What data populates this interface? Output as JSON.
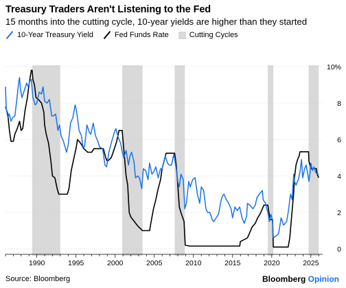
{
  "header": {
    "title": "Treasury Traders Aren't Listening to the Fed",
    "subtitle": "15 months into the cutting cycle, 10-year yields are higher than they started"
  },
  "legend": {
    "items": [
      {
        "label": "10-Year Treasury Yield",
        "color": "#1a73e8",
        "kind": "line"
      },
      {
        "label": "Fed Funds Rate",
        "color": "#000000",
        "kind": "line"
      },
      {
        "label": "Cutting Cycles",
        "color": "#d9d9d9",
        "kind": "swatch"
      }
    ]
  },
  "footer": {
    "source": "Source: Bloomberg",
    "brand_main": "Bloomberg",
    "brand_accent": "Opinion"
  },
  "chart_data": {
    "type": "line",
    "title": "Treasury Traders Aren't Listening to the Fed",
    "subtitle": "15 months into the cutting cycle, 10-year yields are higher than they started",
    "xlabel": "",
    "ylabel": "",
    "xlim": [
      1986,
      2026.5
    ],
    "ylim": [
      0,
      10
    ],
    "y_unit_label": "%",
    "x_ticks": [
      1990,
      1995,
      2000,
      2005,
      2010,
      2015,
      2020,
      2025
    ],
    "y_ticks": [
      0,
      2,
      4,
      6,
      8,
      10
    ],
    "y_tick_labels": [
      "0",
      "2",
      "4",
      "6",
      "8",
      "10%"
    ],
    "grid": "horizontal",
    "legend_position": "top-left",
    "shaded_regions": {
      "name": "Cutting Cycles",
      "color": "#d9d9d9",
      "ranges": [
        [
          1989.4,
          1993.0
        ],
        [
          2000.9,
          2003.5
        ],
        [
          2007.6,
          2008.9
        ],
        [
          2019.5,
          2020.2
        ],
        [
          2024.7,
          2026.0
        ]
      ]
    },
    "series": [
      {
        "name": "10-Year Treasury Yield",
        "color": "#1a73e8",
        "points": [
          [
            1986.0,
            8.9
          ],
          [
            1986.1,
            7.7
          ],
          [
            1986.3,
            7.2
          ],
          [
            1986.5,
            7.4
          ],
          [
            1986.7,
            7.0
          ],
          [
            1986.9,
            7.2
          ],
          [
            1987.2,
            7.3
          ],
          [
            1987.5,
            8.4
          ],
          [
            1987.7,
            9.2
          ],
          [
            1987.8,
            9.4
          ],
          [
            1987.9,
            8.8
          ],
          [
            1988.1,
            8.3
          ],
          [
            1988.4,
            8.7
          ],
          [
            1988.7,
            9.1
          ],
          [
            1988.9,
            8.9
          ],
          [
            1989.1,
            9.2
          ],
          [
            1989.3,
            9.3
          ],
          [
            1989.5,
            8.3
          ],
          [
            1989.8,
            7.9
          ],
          [
            1990.0,
            8.0
          ],
          [
            1990.3,
            8.6
          ],
          [
            1990.6,
            8.5
          ],
          [
            1990.8,
            8.9
          ],
          [
            1991.0,
            8.1
          ],
          [
            1991.3,
            8.0
          ],
          [
            1991.6,
            8.2
          ],
          [
            1991.9,
            7.3
          ],
          [
            1992.1,
            7.3
          ],
          [
            1992.4,
            7.4
          ],
          [
            1992.7,
            6.5
          ],
          [
            1992.9,
            6.8
          ],
          [
            1993.1,
            6.2
          ],
          [
            1993.4,
            5.9
          ],
          [
            1993.6,
            5.6
          ],
          [
            1993.8,
            5.3
          ],
          [
            1994.0,
            5.7
          ],
          [
            1994.3,
            6.9
          ],
          [
            1994.6,
            7.2
          ],
          [
            1994.9,
            7.9
          ],
          [
            1995.1,
            7.5
          ],
          [
            1995.4,
            6.5
          ],
          [
            1995.7,
            6.2
          ],
          [
            1995.9,
            5.6
          ],
          [
            1996.1,
            5.6
          ],
          [
            1996.4,
            6.8
          ],
          [
            1996.7,
            6.4
          ],
          [
            1996.9,
            6.3
          ],
          [
            1997.2,
            6.9
          ],
          [
            1997.5,
            6.2
          ],
          [
            1997.8,
            5.9
          ],
          [
            1998.0,
            5.6
          ],
          [
            1998.4,
            5.5
          ],
          [
            1998.7,
            4.6
          ],
          [
            1998.9,
            4.5
          ],
          [
            1999.2,
            5.3
          ],
          [
            1999.5,
            5.8
          ],
          [
            1999.9,
            6.4
          ],
          [
            2000.1,
            6.6
          ],
          [
            2000.4,
            6.1
          ],
          [
            2000.7,
            5.8
          ],
          [
            2000.9,
            5.3
          ],
          [
            2001.1,
            5.0
          ],
          [
            2001.4,
            5.4
          ],
          [
            2001.7,
            4.6
          ],
          [
            2001.9,
            5.1
          ],
          [
            2002.1,
            5.3
          ],
          [
            2002.4,
            4.8
          ],
          [
            2002.6,
            3.9
          ],
          [
            2002.9,
            4.0
          ],
          [
            2003.1,
            3.9
          ],
          [
            2003.4,
            3.3
          ],
          [
            2003.6,
            4.4
          ],
          [
            2003.9,
            4.3
          ],
          [
            2004.2,
            3.8
          ],
          [
            2004.4,
            4.7
          ],
          [
            2004.7,
            4.1
          ],
          [
            2004.9,
            4.2
          ],
          [
            2005.2,
            4.5
          ],
          [
            2005.5,
            3.9
          ],
          [
            2005.8,
            4.4
          ],
          [
            2006.0,
            4.4
          ],
          [
            2006.4,
            5.1
          ],
          [
            2006.7,
            4.7
          ],
          [
            2006.9,
            4.6
          ],
          [
            2007.2,
            4.6
          ],
          [
            2007.5,
            5.2
          ],
          [
            2007.8,
            4.4
          ],
          [
            2008.0,
            3.7
          ],
          [
            2008.2,
            3.4
          ],
          [
            2008.4,
            4.1
          ],
          [
            2008.7,
            3.8
          ],
          [
            2008.9,
            2.2
          ],
          [
            2009.1,
            2.5
          ],
          [
            2009.4,
            3.7
          ],
          [
            2009.6,
            3.4
          ],
          [
            2009.9,
            3.8
          ],
          [
            2010.2,
            3.9
          ],
          [
            2010.5,
            3.0
          ],
          [
            2010.8,
            2.5
          ],
          [
            2011.0,
            3.4
          ],
          [
            2011.3,
            3.2
          ],
          [
            2011.6,
            2.2
          ],
          [
            2011.8,
            2.0
          ],
          [
            2012.1,
            2.0
          ],
          [
            2012.4,
            1.6
          ],
          [
            2012.6,
            1.5
          ],
          [
            2012.9,
            1.7
          ],
          [
            2013.2,
            1.9
          ],
          [
            2013.5,
            2.6
          ],
          [
            2013.7,
            2.9
          ],
          [
            2013.9,
            3.0
          ],
          [
            2014.2,
            2.7
          ],
          [
            2014.5,
            2.5
          ],
          [
            2014.8,
            2.2
          ],
          [
            2015.0,
            1.7
          ],
          [
            2015.3,
            2.3
          ],
          [
            2015.6,
            2.1
          ],
          [
            2015.9,
            2.3
          ],
          [
            2016.2,
            1.7
          ],
          [
            2016.5,
            1.4
          ],
          [
            2016.8,
            1.8
          ],
          [
            2016.9,
            2.5
          ],
          [
            2017.2,
            2.4
          ],
          [
            2017.6,
            2.2
          ],
          [
            2017.9,
            2.4
          ],
          [
            2018.1,
            2.8
          ],
          [
            2018.4,
            3.0
          ],
          [
            2018.8,
            3.2
          ],
          [
            2018.9,
            2.7
          ],
          [
            2019.2,
            2.5
          ],
          [
            2019.5,
            2.0
          ],
          [
            2019.7,
            1.5
          ],
          [
            2019.9,
            1.9
          ],
          [
            2020.1,
            1.5
          ],
          [
            2020.2,
            0.6
          ],
          [
            2020.5,
            0.7
          ],
          [
            2020.8,
            0.8
          ],
          [
            2020.9,
            0.9
          ],
          [
            2021.2,
            1.7
          ],
          [
            2021.5,
            1.3
          ],
          [
            2021.9,
            1.5
          ],
          [
            2022.1,
            2.0
          ],
          [
            2022.4,
            3.0
          ],
          [
            2022.6,
            2.7
          ],
          [
            2022.8,
            4.1
          ],
          [
            2022.9,
            3.7
          ],
          [
            2023.1,
            3.5
          ],
          [
            2023.4,
            3.8
          ],
          [
            2023.6,
            4.2
          ],
          [
            2023.8,
            4.9
          ],
          [
            2023.95,
            3.9
          ],
          [
            2024.2,
            4.4
          ],
          [
            2024.4,
            4.6
          ],
          [
            2024.6,
            4.1
          ],
          [
            2024.75,
            3.7
          ],
          [
            2024.9,
            4.2
          ],
          [
            2025.0,
            4.7
          ],
          [
            2025.2,
            4.3
          ],
          [
            2025.4,
            4.5
          ],
          [
            2025.6,
            4.2
          ],
          [
            2025.8,
            4.1
          ],
          [
            2026.0,
            4.1
          ]
        ]
      },
      {
        "name": "Fed Funds Rate",
        "color": "#000000",
        "points": [
          [
            1986.0,
            7.8
          ],
          [
            1986.3,
            7.4
          ],
          [
            1986.5,
            6.5
          ],
          [
            1986.7,
            5.9
          ],
          [
            1987.0,
            5.9
          ],
          [
            1987.2,
            6.3
          ],
          [
            1987.5,
            6.6
          ],
          [
            1987.8,
            7.0
          ],
          [
            1988.0,
            6.5
          ],
          [
            1988.2,
            6.6
          ],
          [
            1988.5,
            7.6
          ],
          [
            1988.8,
            8.3
          ],
          [
            1989.0,
            9.0
          ],
          [
            1989.3,
            9.8
          ],
          [
            1989.4,
            9.8
          ],
          [
            1989.5,
            9.3
          ],
          [
            1989.7,
            9.0
          ],
          [
            1989.9,
            8.3
          ],
          [
            1990.2,
            8.2
          ],
          [
            1990.6,
            8.0
          ],
          [
            1990.9,
            7.5
          ],
          [
            1991.0,
            6.8
          ],
          [
            1991.2,
            6.3
          ],
          [
            1991.5,
            5.8
          ],
          [
            1991.8,
            4.8
          ],
          [
            1992.0,
            4.0
          ],
          [
            1992.3,
            3.9
          ],
          [
            1992.6,
            3.3
          ],
          [
            1992.8,
            3.0
          ],
          [
            1993.2,
            3.0
          ],
          [
            1993.6,
            3.0
          ],
          [
            1993.9,
            3.0
          ],
          [
            1994.1,
            3.3
          ],
          [
            1994.4,
            4.3
          ],
          [
            1994.7,
            4.9
          ],
          [
            1995.0,
            5.5
          ],
          [
            1995.2,
            6.0
          ],
          [
            1995.6,
            5.8
          ],
          [
            1996.0,
            5.5
          ],
          [
            1996.5,
            5.3
          ],
          [
            1997.0,
            5.3
          ],
          [
            1997.3,
            5.5
          ],
          [
            1997.8,
            5.5
          ],
          [
            1998.5,
            5.5
          ],
          [
            1998.8,
            5.0
          ],
          [
            1999.0,
            4.8
          ],
          [
            1999.5,
            5.0
          ],
          [
            1999.9,
            5.5
          ],
          [
            2000.2,
            5.9
          ],
          [
            2000.5,
            6.5
          ],
          [
            2000.9,
            6.5
          ],
          [
            2001.0,
            6.0
          ],
          [
            2001.2,
            5.0
          ],
          [
            2001.4,
            4.0
          ],
          [
            2001.6,
            3.5
          ],
          [
            2001.8,
            2.0
          ],
          [
            2002.0,
            1.75
          ],
          [
            2002.9,
            1.25
          ],
          [
            2003.5,
            1.0
          ],
          [
            2004.4,
            1.0
          ],
          [
            2004.6,
            1.5
          ],
          [
            2004.9,
            2.2
          ],
          [
            2005.2,
            2.7
          ],
          [
            2005.5,
            3.3
          ],
          [
            2005.8,
            3.8
          ],
          [
            2006.0,
            4.4
          ],
          [
            2006.3,
            4.9
          ],
          [
            2006.5,
            5.25
          ],
          [
            2007.0,
            5.25
          ],
          [
            2007.6,
            5.25
          ],
          [
            2007.8,
            4.6
          ],
          [
            2008.0,
            3.5
          ],
          [
            2008.2,
            2.3
          ],
          [
            2008.4,
            2.0
          ],
          [
            2008.8,
            1.5
          ],
          [
            2008.95,
            0.2
          ],
          [
            2009.5,
            0.15
          ],
          [
            2012.0,
            0.15
          ],
          [
            2015.9,
            0.15
          ],
          [
            2016.0,
            0.4
          ],
          [
            2016.9,
            0.6
          ],
          [
            2017.2,
            0.9
          ],
          [
            2017.5,
            1.2
          ],
          [
            2017.9,
            1.4
          ],
          [
            2018.2,
            1.7
          ],
          [
            2018.5,
            1.9
          ],
          [
            2018.8,
            2.2
          ],
          [
            2019.0,
            2.4
          ],
          [
            2019.5,
            2.4
          ],
          [
            2019.6,
            2.1
          ],
          [
            2019.8,
            1.6
          ],
          [
            2020.1,
            1.6
          ],
          [
            2020.2,
            0.1
          ],
          [
            2021.0,
            0.1
          ],
          [
            2022.1,
            0.1
          ],
          [
            2022.3,
            0.6
          ],
          [
            2022.5,
            1.6
          ],
          [
            2022.7,
            2.6
          ],
          [
            2022.8,
            3.1
          ],
          [
            2022.9,
            3.9
          ],
          [
            2023.1,
            4.6
          ],
          [
            2023.3,
            4.9
          ],
          [
            2023.5,
            5.1
          ],
          [
            2023.6,
            5.33
          ],
          [
            2024.7,
            5.33
          ],
          [
            2024.75,
            4.8
          ],
          [
            2024.9,
            4.6
          ],
          [
            2025.0,
            4.4
          ],
          [
            2025.7,
            4.4
          ],
          [
            2025.8,
            4.1
          ],
          [
            2026.0,
            3.9
          ]
        ]
      }
    ]
  }
}
